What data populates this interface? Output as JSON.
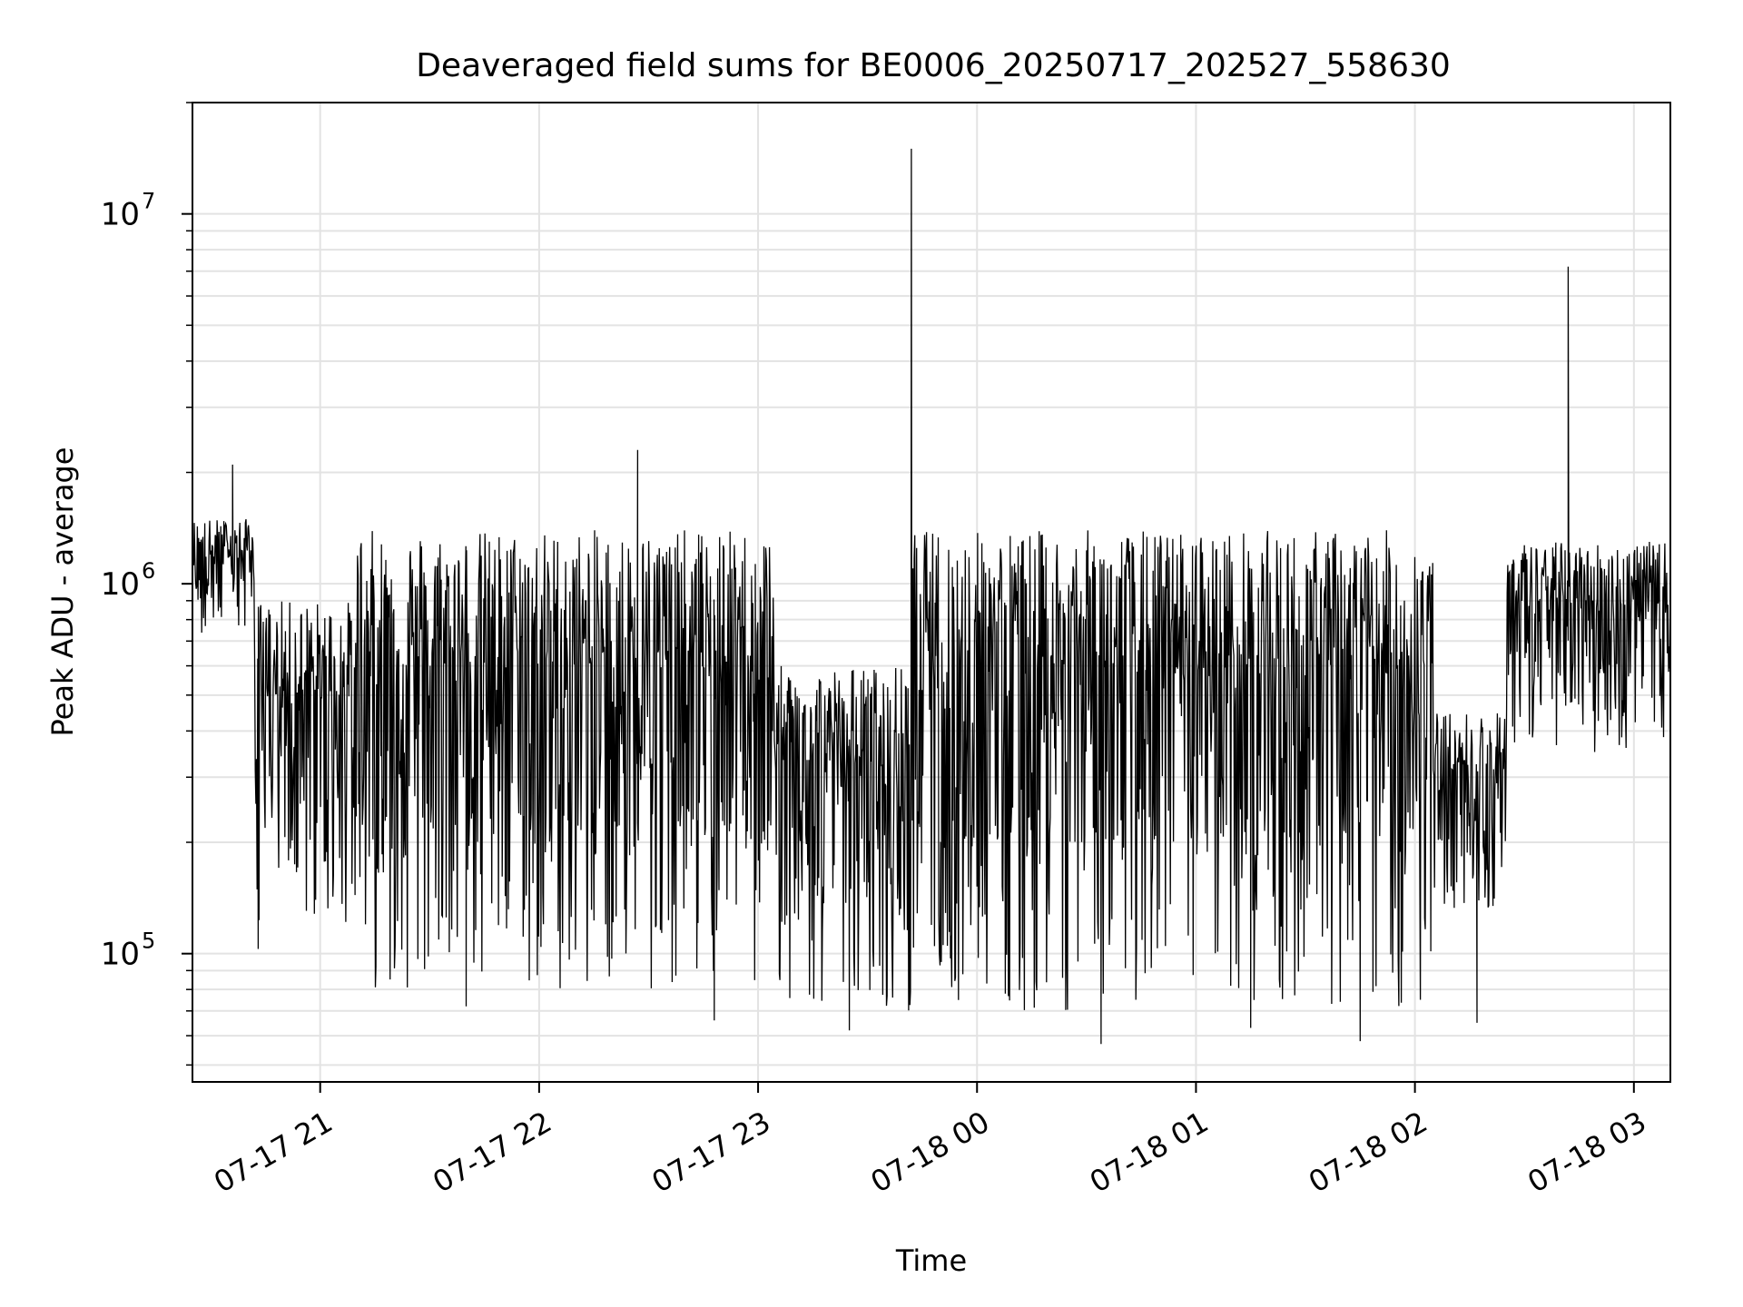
{
  "chart_data": {
    "type": "line",
    "title": "Deaveraged field sums for BE0006_20250717_202527_558630",
    "xlabel": "Time",
    "ylabel": "Peak ADU - average",
    "yscale": "log",
    "grid": true,
    "legend": "none",
    "line_color": "#000000",
    "xlim": [
      "2025-07-17 20:25",
      "2025-07-18 03:10"
    ],
    "ylim": [
      45000,
      20000000
    ],
    "xticks": [
      {
        "t": "2025-07-17 21:00",
        "label": "07-17 21"
      },
      {
        "t": "2025-07-17 22:00",
        "label": "07-17 22"
      },
      {
        "t": "2025-07-17 23:00",
        "label": "07-17 23"
      },
      {
        "t": "2025-07-18 00:00",
        "label": "07-18 00"
      },
      {
        "t": "2025-07-18 01:00",
        "label": "07-18 01"
      },
      {
        "t": "2025-07-18 02:00",
        "label": "07-18 02"
      },
      {
        "t": "2025-07-18 03:00",
        "label": "07-18 03"
      }
    ],
    "yticks": [
      {
        "value": 100000,
        "base": "10",
        "exp": "5"
      },
      {
        "value": 1000000,
        "base": "10",
        "exp": "6"
      },
      {
        "value": 10000000,
        "base": "10",
        "exp": "7"
      }
    ],
    "series": [
      {
        "x_start": "2025-07-17 20:25",
        "x_end": "2025-07-18 03:10",
        "segments": [
          {
            "from": "2025-07-17 20:25",
            "to": "2025-07-17 20:42",
            "low": 700000,
            "high": 1500000
          },
          {
            "from": "2025-07-17 20:42",
            "to": "2025-07-17 21:10",
            "low": 120000,
            "high": 900000
          },
          {
            "from": "2025-07-17 21:10",
            "to": "2025-07-17 23:05",
            "low": 80000,
            "high": 1400000
          },
          {
            "from": "2025-07-17 23:05",
            "to": "2025-07-17 23:42",
            "low": 70000,
            "high": 600000
          },
          {
            "from": "2025-07-17 23:42",
            "to": "2025-07-18 02:05",
            "low": 70000,
            "high": 1400000
          },
          {
            "from": "2025-07-18 02:05",
            "to": "2025-07-18 02:25",
            "low": 130000,
            "high": 450000
          },
          {
            "from": "2025-07-18 02:25",
            "to": "2025-07-18 03:10",
            "low": 350000,
            "high": 1300000
          }
        ],
        "peaks": [
          {
            "t": "2025-07-17 20:36",
            "value": 2100000
          },
          {
            "t": "2025-07-17 22:27",
            "value": 2300000
          },
          {
            "t": "2025-07-17 23:42",
            "value": 15000000
          },
          {
            "t": "2025-07-18 02:42",
            "value": 7200000
          }
        ],
        "dips": [
          {
            "t": "2025-07-17 20:43",
            "value": 103000
          },
          {
            "t": "2025-07-17 21:40",
            "value": 72000
          },
          {
            "t": "2025-07-17 22:48",
            "value": 66000
          },
          {
            "t": "2025-07-17 23:25",
            "value": 62000
          },
          {
            "t": "2025-07-18 00:34",
            "value": 57000
          },
          {
            "t": "2025-07-18 01:15",
            "value": 63000
          },
          {
            "t": "2025-07-18 01:45",
            "value": 58000
          },
          {
            "t": "2025-07-18 02:17",
            "value": 65000
          }
        ]
      }
    ]
  }
}
